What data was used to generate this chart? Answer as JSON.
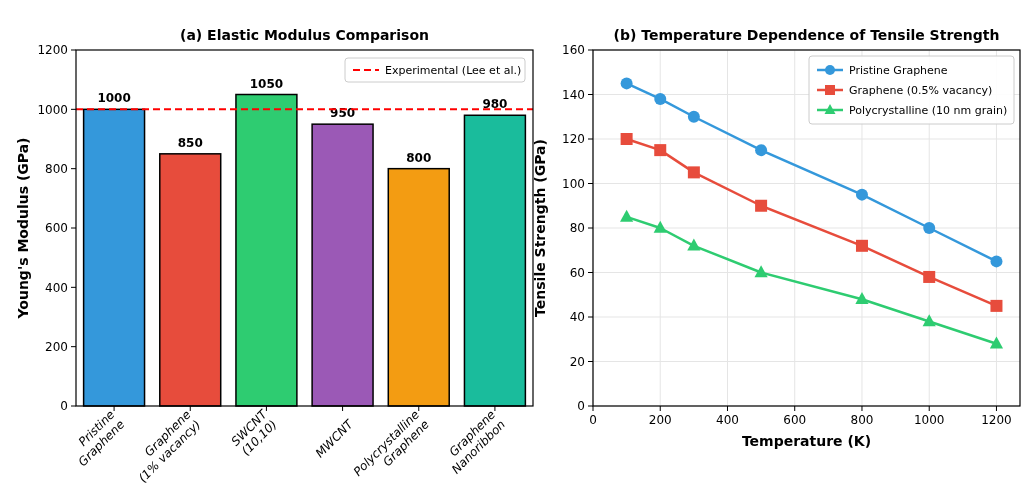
{
  "chart_data": [
    {
      "type": "bar",
      "title": "(a) Elastic Modulus Comparison",
      "ylabel": "Young's Modulus (GPa)",
      "categories": [
        "Pristine\nGraphene",
        "Graphene\n(1% vacancy)",
        "SWCNT\n(10,10)",
        "MWCNT",
        "Polycrystalline\nGraphene",
        "Graphene\nNanoribbon"
      ],
      "values": [
        1000,
        850,
        1050,
        950,
        800,
        980
      ],
      "colors": [
        "#3498db",
        "#e74c3c",
        "#2ecc71",
        "#9b59b6",
        "#f39c12",
        "#1abc9c"
      ],
      "ylim": [
        0,
        1200
      ],
      "yticks": [
        0,
        200,
        400,
        600,
        800,
        1000,
        1200
      ],
      "data_labels": true,
      "ref_lines": [
        {
          "axis": "y",
          "value": 1000,
          "label": "Experimental (Lee et al.)",
          "color": "#ff0000",
          "line_style": "dashed"
        }
      ],
      "legend": "top right",
      "grid": false
    },
    {
      "type": "line",
      "title": "(b) Temperature Dependence of Tensile Strength",
      "xlabel": "Temperature (K)",
      "ylabel": "Tensile Strength (GPa)",
      "x": [
        100,
        200,
        300,
        500,
        800,
        1000,
        1200
      ],
      "series": [
        {
          "name": "Pristine Graphene",
          "color": "#3498db",
          "marker": "circle",
          "values": [
            145,
            138,
            130,
            115,
            95,
            80,
            65
          ]
        },
        {
          "name": "Graphene (0.5% vacancy)",
          "color": "#e74c3c",
          "marker": "square",
          "values": [
            120,
            115,
            105,
            90,
            72,
            58,
            45
          ]
        },
        {
          "name": "Polycrystalline (10 nm grain)",
          "color": "#2ecc71",
          "marker": "triangle",
          "values": [
            85,
            80,
            72,
            60,
            48,
            38,
            28
          ]
        }
      ],
      "xlim": [
        0,
        1270
      ],
      "xticks": [
        0,
        200,
        400,
        600,
        800,
        1000,
        1200
      ],
      "ylim": [
        0,
        160
      ],
      "yticks": [
        0,
        20,
        40,
        60,
        80,
        100,
        120,
        140,
        160
      ],
      "grid": true,
      "legend": "top right",
      "line_style": "solid"
    }
  ]
}
